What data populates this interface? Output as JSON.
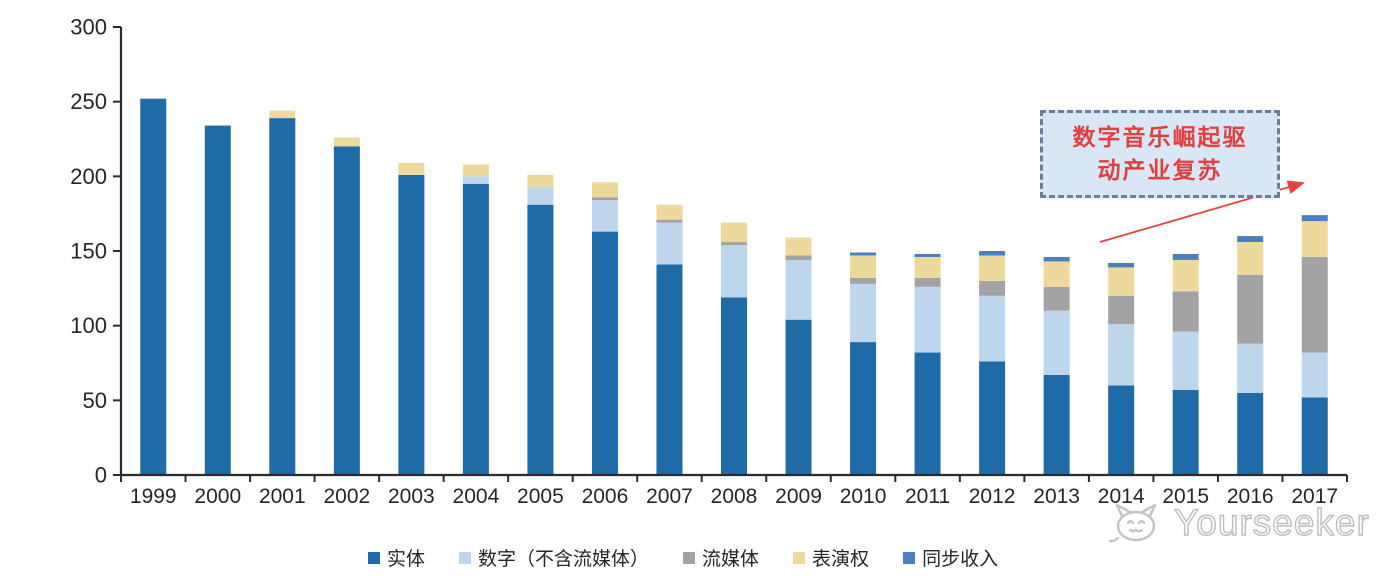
{
  "chart_data": {
    "type": "bar",
    "stacked": true,
    "title": "",
    "xlabel": "",
    "ylabel": "",
    "categories": [
      "1999",
      "2000",
      "2001",
      "2002",
      "2003",
      "2004",
      "2005",
      "2006",
      "2007",
      "2008",
      "2009",
      "2010",
      "2011",
      "2012",
      "2013",
      "2014",
      "2015",
      "2016",
      "2017"
    ],
    "series": [
      {
        "name": "实体",
        "color": "#1e6ba8",
        "values": [
          252,
          234,
          239,
          220,
          201,
          195,
          181,
          163,
          141,
          119,
          104,
          89,
          82,
          76,
          67,
          60,
          57,
          55,
          52
        ]
      },
      {
        "name": "数字（不含流媒体）",
        "color": "#bdd6ec",
        "values": [
          0,
          0,
          0,
          0,
          0,
          5,
          12,
          21,
          28,
          35,
          40,
          39,
          44,
          44,
          43,
          41,
          39,
          33,
          30
        ]
      },
      {
        "name": "流媒体",
        "color": "#a3a3a5",
        "values": [
          0,
          0,
          0,
          0,
          0,
          0,
          0,
          2,
          2,
          2,
          3,
          4,
          6,
          10,
          16,
          19,
          27,
          46,
          64
        ]
      },
      {
        "name": "表演权",
        "color": "#ecd99b",
        "values": [
          0,
          0,
          5,
          6,
          8,
          8,
          8,
          10,
          10,
          13,
          12,
          15,
          14,
          17,
          17,
          19,
          21,
          22,
          24
        ]
      },
      {
        "name": "同步收入",
        "color": "#4a80be",
        "values": [
          0,
          0,
          0,
          0,
          0,
          0,
          0,
          0,
          0,
          0,
          0,
          2,
          2,
          3,
          3,
          3,
          4,
          4,
          4
        ]
      }
    ],
    "ylim": [
      0,
      300
    ],
    "ytick_interval": 50,
    "yticks": [
      "0",
      "50",
      "100",
      "150",
      "200",
      "250",
      "300"
    ],
    "grid": false,
    "legend_position": "bottom",
    "axis_color": "#2b2b2b"
  },
  "annotation": {
    "line1": "数字音乐崛起驱",
    "line2": "动产业复苏",
    "text_color": "#e23f3f",
    "box_fill": "#d9e6f5",
    "border_color": "#67809c",
    "arrow_color": "#e8433f"
  },
  "watermark": {
    "text": "Yourseeker"
  }
}
